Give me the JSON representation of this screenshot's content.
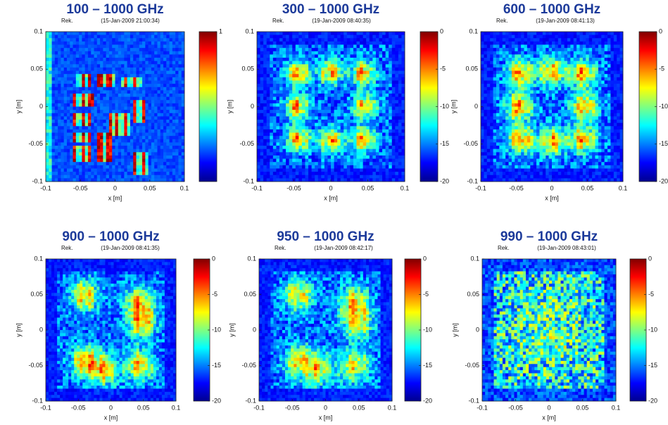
{
  "chart_data": [
    {
      "type": "image",
      "title": "100 – 1000 GHz",
      "subtitle": "Rek.",
      "timestamp": "(15-Jan-2009 21:00:34)",
      "xlabel": "x [m]",
      "ylabel": "y [m]",
      "xlim": [
        -0.1,
        0.1
      ],
      "xticks": [
        -0.1,
        -0.05,
        0,
        0.05,
        0.1
      ],
      "ylim": [
        -0.1,
        0.1
      ],
      "yticks": [
        -0.1,
        -0.05,
        0,
        0.05,
        0.1
      ],
      "colorbar": {
        "clim": [
          0,
          1
        ],
        "ticks": [
          1
        ]
      }
    },
    {
      "type": "image",
      "title": "300 – 1000 GHz",
      "subtitle": "Rek.",
      "timestamp": "(19-Jan-2009 08:40:35)",
      "xlabel": "x [m]",
      "ylabel": "y [m]",
      "xlim": [
        -0.1,
        0.1
      ],
      "xticks": [
        -0.1,
        -0.05,
        0,
        0.05,
        0.1
      ],
      "ylim": [
        -0.1,
        0.1
      ],
      "yticks": [
        -0.1,
        -0.05,
        0,
        0.05,
        0.1
      ],
      "colorbar": {
        "clim": [
          -20,
          0
        ],
        "ticks": [
          0,
          -5,
          -10,
          -15,
          -20
        ]
      }
    },
    {
      "type": "image",
      "title": "600 – 1000 GHz",
      "subtitle": "Rek.",
      "timestamp": "(19-Jan-2009 08:41:13)",
      "xlabel": "x [m]",
      "ylabel": "y [m]",
      "xlim": [
        -0.1,
        0.1
      ],
      "xticks": [
        -0.1,
        -0.05,
        0,
        0.05,
        0.1
      ],
      "ylim": [
        -0.1,
        0.1
      ],
      "yticks": [
        -0.1,
        -0.05,
        0,
        0.05,
        0.1
      ],
      "colorbar": {
        "clim": [
          -20,
          0
        ],
        "ticks": [
          0,
          -5,
          -10,
          -15,
          -20
        ]
      }
    },
    {
      "type": "image",
      "title": "900 – 1000 GHz",
      "subtitle": "Rek.",
      "timestamp": "(19-Jan-2009 08:41:35)",
      "xlabel": "x [m]",
      "ylabel": "y [m]",
      "xlim": [
        -0.1,
        0.1
      ],
      "xticks": [
        -0.1,
        -0.05,
        0,
        0.05,
        0.1
      ],
      "ylim": [
        -0.1,
        0.1
      ],
      "yticks": [
        -0.1,
        -0.05,
        0,
        0.05,
        0.1
      ],
      "colorbar": {
        "clim": [
          -20,
          0
        ],
        "ticks": [
          0,
          -5,
          -10,
          -15,
          -20
        ]
      }
    },
    {
      "type": "image",
      "title": "950 – 1000 GHz",
      "subtitle": "Rek.",
      "timestamp": "(19-Jan-2009 08:42:17)",
      "xlabel": "x [m]",
      "ylabel": "y [m]",
      "xlim": [
        -0.1,
        0.1
      ],
      "xticks": [
        -0.1,
        -0.05,
        0,
        0.05,
        0.1
      ],
      "ylim": [
        -0.1,
        0.1
      ],
      "yticks": [
        -0.1,
        -0.05,
        0,
        0.05,
        0.1
      ],
      "colorbar": {
        "clim": [
          -20,
          0
        ],
        "ticks": [
          0,
          -5,
          -10,
          -15,
          -20
        ]
      }
    },
    {
      "type": "image",
      "title": "990 – 1000 GHz",
      "subtitle": "Rek.",
      "timestamp": "(19-Jan-2009 08:43:01)",
      "xlabel": "x [m]",
      "ylabel": "y [m]",
      "xlim": [
        -0.1,
        0.1
      ],
      "xticks": [
        -0.1,
        -0.05,
        0,
        0.05,
        0.1
      ],
      "ylim": [
        -0.1,
        0.1
      ],
      "yticks": [
        -0.1,
        -0.05,
        0,
        0.05,
        0.1
      ],
      "colorbar": {
        "clim": [
          -20,
          0
        ],
        "ticks": [
          0,
          -5,
          -10,
          -15,
          -20
        ]
      }
    }
  ]
}
